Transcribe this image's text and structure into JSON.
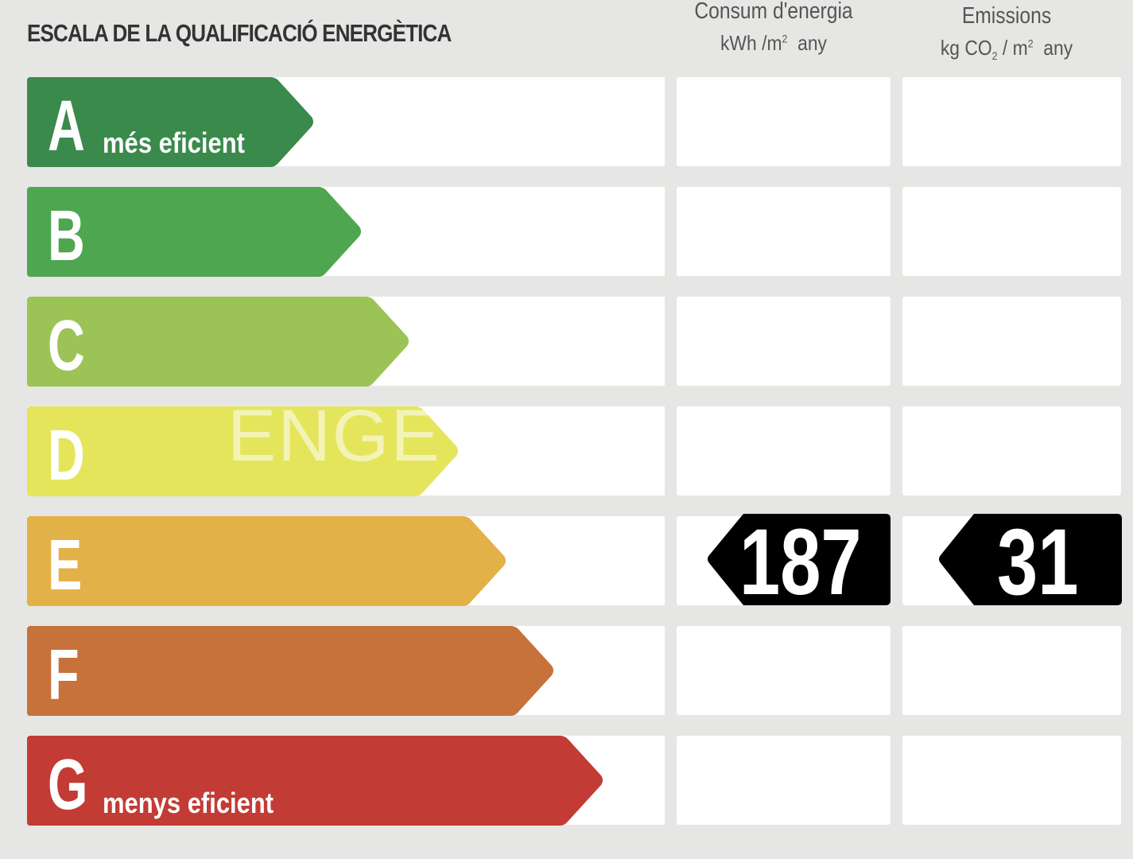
{
  "header": {
    "title": "ESCALA DE LA QUALIFICACIÓ ENERGÈTICA",
    "energy_col": {
      "title": "Consum d'energia",
      "unit_a": "kWh /m",
      "unit_sup": "2",
      "unit_b": "any"
    },
    "emissions_col": {
      "title": "Emissions",
      "unit_a": "kg CO",
      "unit_sub": "2",
      "unit_c": " / m",
      "unit_sup": "2",
      "unit_b": "any"
    }
  },
  "classes": [
    {
      "letter": "A",
      "label": "més eficient",
      "color": "#3a8a4c"
    },
    {
      "letter": "B",
      "label": "",
      "color": "#4ea651"
    },
    {
      "letter": "C",
      "label": "",
      "color": "#9cc356"
    },
    {
      "letter": "D",
      "label": "",
      "color": "#e5e55c"
    },
    {
      "letter": "E",
      "label": "",
      "color": "#e2b148"
    },
    {
      "letter": "F",
      "label": "",
      "color": "#c6723a"
    },
    {
      "letter": "G",
      "label": "menys eficient",
      "color": "#c23c35"
    }
  ],
  "rating": {
    "class": "E",
    "energy_value": "187",
    "emissions_value": "31",
    "marker_color": "#000000"
  },
  "watermark": "ENGE"
}
